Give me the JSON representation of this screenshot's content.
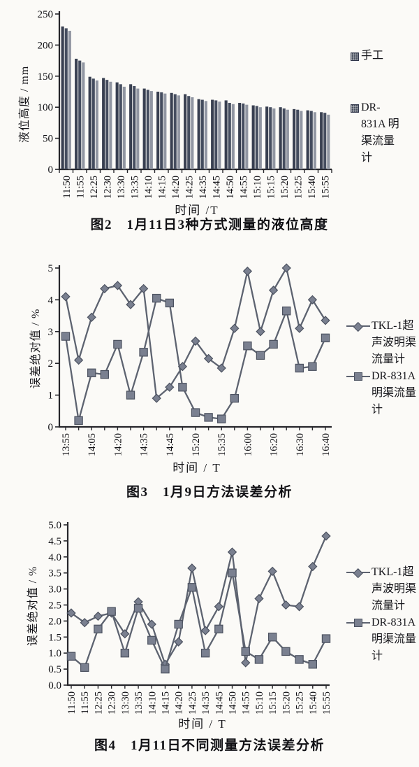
{
  "page": {
    "background": "#fbfaf7",
    "ink": "#16161a",
    "axis_color": "#26262b"
  },
  "chart_data": [
    {
      "type": "bar",
      "title": "图2　1月11日3种方式测量的液位高度",
      "xlabel": "时间 /T",
      "ylabel": "液位高度 / mm",
      "ylim": [
        0,
        250
      ],
      "ytick_labels": [
        "0",
        "50",
        "100",
        "150",
        "200",
        "250"
      ],
      "grid": false,
      "legend_position": "right",
      "categories": [
        "11:50",
        "11:55",
        "12:25",
        "12:30",
        "13:30",
        "13:35",
        "14:10",
        "14:15",
        "14:20",
        "14:25",
        "14:35",
        "14:45",
        "14:50",
        "14:55",
        "15:10",
        "15:15",
        "15:20",
        "15:25",
        "15:40",
        "15:55"
      ],
      "series": [
        {
          "name": "手工",
          "color": "#383f50",
          "values": [
            230,
            178,
            149,
            147,
            140,
            137,
            130,
            125,
            123,
            121,
            113,
            112,
            111,
            107,
            103,
            101,
            100,
            97,
            95,
            92
          ]
        },
        {
          "name": "",
          "color": "#454d5f",
          "values": [
            227,
            175,
            146,
            144,
            137,
            134,
            128,
            124,
            121,
            118,
            112,
            111,
            107,
            106,
            102,
            100,
            98,
            96,
            94,
            91
          ]
        },
        {
          "name": "DR-831A明渠流量计",
          "color": "#9196a2",
          "values": [
            223,
            172,
            143,
            141,
            133,
            130,
            126,
            122,
            119,
            116,
            110,
            109,
            105,
            104,
            100,
            98,
            96,
            94,
            92,
            88
          ]
        }
      ],
      "legend": [
        {
          "marker": "hatched-square",
          "label": "手工"
        },
        {
          "marker": "hatched-square",
          "label": "DR-831A 明渠流量计"
        }
      ]
    },
    {
      "type": "line",
      "title": "图3　1月9日方法误差分析",
      "xlabel": "时间 / T",
      "ylabel": "误差绝对值 / %",
      "ylim": [
        0,
        5
      ],
      "ytick_labels": [
        "0",
        "1",
        "2",
        "3",
        "4",
        "5"
      ],
      "grid": false,
      "legend_position": "right",
      "x_tick_labels": [
        "13:55",
        "",
        "14:05",
        "",
        "14:20",
        "",
        "14:35",
        "",
        "14:45",
        "",
        "15:20",
        "",
        "15:35",
        "",
        "16:00",
        "",
        "16:20",
        "",
        "16:30",
        "",
        "16:40"
      ],
      "series": [
        {
          "name": "TKL-1超声波明渠流量计",
          "marker": "diamond",
          "line_color": "#5d6370",
          "marker_color": "#7a8090",
          "marker_edge": "#4c5260",
          "values": [
            4.1,
            2.1,
            3.45,
            4.35,
            4.45,
            3.85,
            4.35,
            0.9,
            1.25,
            1.9,
            2.7,
            2.15,
            1.85,
            3.1,
            4.9,
            3.0,
            4.3,
            5.0,
            3.1,
            4.0,
            3.35
          ]
        },
        {
          "name": "DR-831A明渠流量计",
          "marker": "square",
          "line_color": "#5d6370",
          "marker_color": "#7a8090",
          "marker_edge": "#4c5260",
          "values": [
            2.85,
            0.2,
            1.7,
            1.65,
            2.6,
            1.0,
            2.35,
            4.05,
            3.9,
            1.25,
            0.45,
            0.3,
            0.25,
            0.9,
            2.55,
            2.25,
            2.6,
            3.65,
            1.85,
            1.9,
            2.8
          ]
        }
      ],
      "legend": [
        {
          "marker": "line-diamond",
          "label": "TKL-1超声波明渠流量计"
        },
        {
          "marker": "line-square",
          "label": "DR-831A明渠流量计"
        }
      ]
    },
    {
      "type": "line",
      "title": "图4　1月11日不同测量方法误差分析",
      "xlabel": "时间 / T",
      "ylabel": "误差绝对值 / %",
      "ylim": [
        0,
        5
      ],
      "ytick_labels": [
        "0.0",
        "0.5",
        "1.0",
        "1.5",
        "2.0",
        "2.5",
        "3.0",
        "3.5",
        "4.0",
        "4.5",
        "5.0"
      ],
      "grid": false,
      "legend_position": "right",
      "x_tick_labels": [
        "11:50",
        "11:55",
        "12:25",
        "12:30",
        "13:30",
        "13:35",
        "14:10",
        "14:15",
        "14:20",
        "14:25",
        "14:35",
        "14:45",
        "14:50",
        "14:55",
        "15:10",
        "15:15",
        "15:20",
        "15:25",
        "15:40",
        "15:55"
      ],
      "series": [
        {
          "name": "TKL-1超声波明渠流量计",
          "marker": "diamond",
          "line_color": "#5d6370",
          "marker_color": "#7a8090",
          "marker_edge": "#4c5260",
          "values": [
            2.25,
            1.95,
            2.15,
            2.25,
            1.6,
            2.6,
            1.9,
            0.65,
            1.35,
            3.65,
            1.7,
            2.45,
            4.15,
            0.7,
            2.7,
            3.55,
            2.5,
            2.45,
            3.7,
            4.65
          ]
        },
        {
          "name": "DR-831A明渠流量计",
          "marker": "square",
          "line_color": "#5d6370",
          "marker_color": "#7a8090",
          "marker_edge": "#4c5260",
          "values": [
            0.9,
            0.55,
            1.75,
            2.3,
            1.0,
            2.4,
            1.4,
            0.5,
            1.9,
            3.05,
            1.0,
            1.75,
            3.5,
            1.05,
            0.8,
            1.5,
            1.05,
            0.8,
            0.65,
            1.45
          ]
        }
      ],
      "legend": [
        {
          "marker": "line-diamond",
          "label": "TKL-1超声波明渠流量计"
        },
        {
          "marker": "line-square",
          "label": "DR-831A明渠流量计"
        }
      ]
    }
  ]
}
